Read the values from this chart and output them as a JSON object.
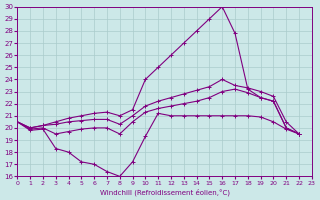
{
  "xlabel": "Windchill (Refroidissement éolien,°C)",
  "ylabel": "",
  "bg_color": "#cce8e8",
  "line_color": "#800080",
  "grid_color": "#aacccc",
  "xlim": [
    0,
    23
  ],
  "ylim": [
    16,
    30
  ],
  "yticks": [
    16,
    17,
    18,
    19,
    20,
    21,
    22,
    23,
    24,
    25,
    26,
    27,
    28,
    29,
    30
  ],
  "xticks": [
    0,
    1,
    2,
    3,
    4,
    5,
    6,
    7,
    8,
    9,
    10,
    11,
    12,
    13,
    14,
    15,
    16,
    17,
    18,
    19,
    20,
    21,
    22,
    23
  ],
  "series": [
    [
      20.5,
      19.8,
      19.9,
      18.3,
      18.0,
      17.2,
      17.0,
      16.4,
      16.0,
      17.2,
      19.3,
      21.2,
      21.0,
      21.0,
      21.0,
      21.0,
      21.0,
      21.0,
      21.0,
      20.9,
      20.5,
      19.9,
      19.5
    ],
    [
      20.5,
      19.9,
      20.0,
      19.5,
      19.7,
      19.9,
      20.0,
      20.0,
      19.5,
      20.5,
      21.3,
      21.6,
      21.8,
      22.0,
      22.2,
      22.5,
      23.0,
      23.2,
      22.9,
      22.5,
      22.2,
      20.0,
      19.5
    ],
    [
      20.5,
      20.0,
      20.2,
      20.3,
      20.5,
      20.6,
      20.7,
      20.7,
      20.3,
      21.0,
      21.8,
      22.2,
      22.5,
      22.8,
      23.1,
      23.4,
      24.0,
      23.5,
      23.3,
      23.0,
      22.6,
      20.5,
      19.5
    ],
    [
      20.5,
      20.0,
      20.2,
      20.5,
      20.8,
      21.0,
      21.2,
      21.3,
      21.0,
      21.5,
      24.0,
      25.0,
      26.0,
      27.0,
      28.0,
      29.0,
      30.0,
      27.8,
      23.2,
      22.5,
      22.2,
      20.0,
      19.5
    ]
  ]
}
